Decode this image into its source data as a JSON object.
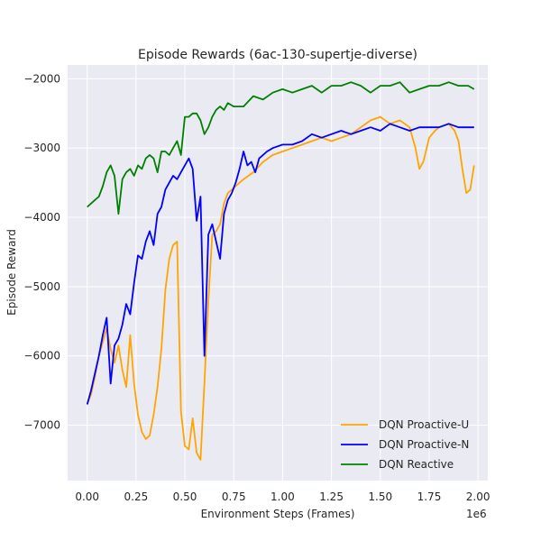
{
  "chart_data": {
    "type": "line",
    "title": "Episode Rewards (6ac-130-supertje-diverse)",
    "xlabel": "Environment Steps (Frames)",
    "ylabel": "Episode Reward",
    "x_offset_label": "1e6",
    "xlim": [
      -0.1,
      2.05
    ],
    "ylim": [
      -7800,
      -1800
    ],
    "x_ticks": [
      0.0,
      0.25,
      0.5,
      0.75,
      1.0,
      1.25,
      1.5,
      1.75,
      2.0
    ],
    "x_tick_labels": [
      "0.00",
      "0.25",
      "0.50",
      "0.75",
      "1.00",
      "1.25",
      "1.50",
      "1.75",
      "2.00"
    ],
    "y_ticks": [
      -7000,
      -6000,
      -5000,
      -4000,
      -3000,
      -2000
    ],
    "y_tick_labels": [
      "−7000",
      "−6000",
      "−5000",
      "−4000",
      "−3000",
      "−2000"
    ],
    "grid": true,
    "legend_position": "bottom-right",
    "series": [
      {
        "name": "DQN Proactive-U",
        "color": "#ffa500",
        "x": [
          0.0,
          0.02,
          0.04,
          0.06,
          0.08,
          0.1,
          0.12,
          0.14,
          0.16,
          0.18,
          0.2,
          0.22,
          0.24,
          0.26,
          0.28,
          0.3,
          0.32,
          0.34,
          0.36,
          0.38,
          0.4,
          0.42,
          0.44,
          0.46,
          0.48,
          0.5,
          0.52,
          0.54,
          0.56,
          0.58,
          0.6,
          0.62,
          0.64,
          0.66,
          0.68,
          0.7,
          0.72,
          0.74,
          0.76,
          0.78,
          0.8,
          0.85,
          0.9,
          0.95,
          1.0,
          1.05,
          1.1,
          1.15,
          1.2,
          1.25,
          1.3,
          1.35,
          1.4,
          1.45,
          1.5,
          1.55,
          1.6,
          1.65,
          1.68,
          1.7,
          1.72,
          1.75,
          1.78,
          1.8,
          1.85,
          1.88,
          1.9,
          1.92,
          1.94,
          1.96,
          1.98
        ],
        "y": [
          -6700,
          -6550,
          -6300,
          -6000,
          -5800,
          -5600,
          -5900,
          -6100,
          -5850,
          -6200,
          -6450,
          -5700,
          -6400,
          -6850,
          -7100,
          -7200,
          -7150,
          -6850,
          -6450,
          -5900,
          -5050,
          -4600,
          -4400,
          -4350,
          -6800,
          -7300,
          -7350,
          -6900,
          -7400,
          -7500,
          -6400,
          -5200,
          -4250,
          -4200,
          -4100,
          -3800,
          -3650,
          -3600,
          -3550,
          -3500,
          -3450,
          -3350,
          -3200,
          -3100,
          -3050,
          -3000,
          -2950,
          -2900,
          -2850,
          -2900,
          -2850,
          -2800,
          -2700,
          -2600,
          -2550,
          -2650,
          -2600,
          -2700,
          -3000,
          -3300,
          -3200,
          -2850,
          -2750,
          -2700,
          -2650,
          -2750,
          -2900,
          -3300,
          -3650,
          -3600,
          -3250
        ]
      },
      {
        "name": "DQN Proactive-N",
        "color": "#0000ff",
        "x": [
          0.0,
          0.02,
          0.04,
          0.06,
          0.08,
          0.1,
          0.12,
          0.14,
          0.16,
          0.18,
          0.2,
          0.22,
          0.24,
          0.26,
          0.28,
          0.3,
          0.32,
          0.34,
          0.36,
          0.38,
          0.4,
          0.42,
          0.44,
          0.46,
          0.48,
          0.5,
          0.52,
          0.54,
          0.56,
          0.58,
          0.6,
          0.62,
          0.64,
          0.66,
          0.68,
          0.7,
          0.72,
          0.74,
          0.76,
          0.78,
          0.8,
          0.82,
          0.84,
          0.86,
          0.88,
          0.9,
          0.92,
          0.95,
          1.0,
          1.05,
          1.1,
          1.15,
          1.2,
          1.25,
          1.3,
          1.35,
          1.4,
          1.45,
          1.5,
          1.55,
          1.6,
          1.65,
          1.7,
          1.75,
          1.8,
          1.85,
          1.9,
          1.95,
          1.98
        ],
        "y": [
          -6700,
          -6500,
          -6250,
          -6000,
          -5700,
          -5450,
          -6400,
          -5850,
          -5750,
          -5550,
          -5250,
          -5400,
          -4950,
          -4550,
          -4600,
          -4350,
          -4200,
          -4400,
          -3950,
          -3850,
          -3600,
          -3500,
          -3400,
          -3450,
          -3350,
          -3250,
          -3150,
          -3300,
          -4050,
          -3700,
          -6000,
          -4250,
          -4100,
          -4350,
          -4600,
          -3950,
          -3750,
          -3650,
          -3500,
          -3300,
          -3050,
          -3250,
          -3200,
          -3350,
          -3150,
          -3100,
          -3050,
          -3000,
          -2950,
          -2950,
          -2900,
          -2800,
          -2850,
          -2800,
          -2750,
          -2800,
          -2750,
          -2700,
          -2750,
          -2650,
          -2700,
          -2750,
          -2700,
          -2700,
          -2700,
          -2650,
          -2700,
          -2700,
          -2700
        ]
      },
      {
        "name": "DQN Reactive",
        "color": "#008000",
        "x": [
          0.0,
          0.02,
          0.04,
          0.06,
          0.08,
          0.1,
          0.12,
          0.14,
          0.16,
          0.18,
          0.2,
          0.22,
          0.24,
          0.26,
          0.28,
          0.3,
          0.32,
          0.34,
          0.36,
          0.38,
          0.4,
          0.42,
          0.44,
          0.46,
          0.48,
          0.5,
          0.52,
          0.54,
          0.56,
          0.58,
          0.6,
          0.62,
          0.64,
          0.66,
          0.68,
          0.7,
          0.72,
          0.75,
          0.8,
          0.85,
          0.9,
          0.95,
          1.0,
          1.05,
          1.1,
          1.15,
          1.2,
          1.25,
          1.3,
          1.35,
          1.4,
          1.45,
          1.5,
          1.55,
          1.6,
          1.65,
          1.7,
          1.75,
          1.8,
          1.85,
          1.9,
          1.95,
          1.98
        ],
        "y": [
          -3850,
          -3800,
          -3750,
          -3700,
          -3550,
          -3350,
          -3250,
          -3400,
          -3950,
          -3450,
          -3350,
          -3300,
          -3400,
          -3250,
          -3300,
          -3150,
          -3100,
          -3150,
          -3350,
          -3050,
          -3050,
          -3100,
          -3000,
          -2900,
          -3100,
          -2550,
          -2550,
          -2500,
          -2500,
          -2600,
          -2800,
          -2700,
          -2550,
          -2450,
          -2400,
          -2450,
          -2350,
          -2400,
          -2400,
          -2250,
          -2300,
          -2200,
          -2150,
          -2200,
          -2150,
          -2100,
          -2200,
          -2100,
          -2100,
          -2050,
          -2100,
          -2200,
          -2100,
          -2100,
          -2050,
          -2200,
          -2150,
          -2100,
          -2100,
          -2050,
          -2100,
          -2100,
          -2150
        ]
      }
    ]
  }
}
